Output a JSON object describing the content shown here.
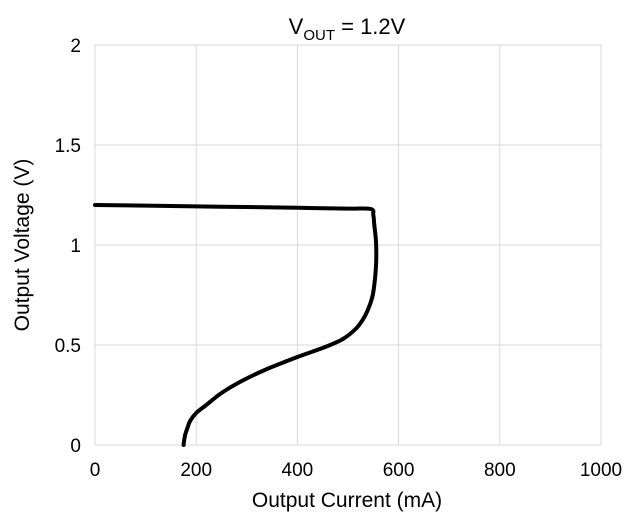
{
  "chart_data": {
    "type": "line",
    "title_main": "V",
    "title_sub": "OUT",
    "title_rest": " = 1.2V",
    "xlabel": "Output Current (mA)",
    "ylabel": "Output Voltage (V)",
    "xlim": [
      0,
      1000
    ],
    "ylim": [
      0,
      2
    ],
    "x_ticks": [
      0,
      200,
      400,
      600,
      800,
      1000
    ],
    "y_ticks": [
      0,
      0.5,
      1,
      1.5,
      2
    ],
    "x_tick_labels": [
      "0",
      "200",
      "400",
      "600",
      "800",
      "1000"
    ],
    "y_tick_labels": [
      "0",
      "0.5",
      "1",
      "1.5",
      "2"
    ],
    "grid": true,
    "legend": "none",
    "line_color": "#000000",
    "grid_color": "#d9d9d9",
    "series": [
      {
        "x": [
          0,
          100,
          200,
          300,
          400,
          500,
          545,
          550,
          552,
          555,
          556,
          555,
          552,
          548,
          540,
          530,
          515,
          490,
          455,
          400,
          340,
          290,
          250,
          220,
          200,
          188,
          182,
          178,
          176,
          175
        ],
        "y": [
          1.2,
          1.197,
          1.193,
          1.19,
          1.186,
          1.182,
          1.18,
          1.15,
          1.1,
          1.03,
          0.95,
          0.88,
          0.8,
          0.74,
          0.68,
          0.63,
          0.58,
          0.53,
          0.49,
          0.44,
          0.38,
          0.32,
          0.26,
          0.2,
          0.16,
          0.12,
          0.08,
          0.05,
          0.02,
          0
        ]
      }
    ]
  }
}
